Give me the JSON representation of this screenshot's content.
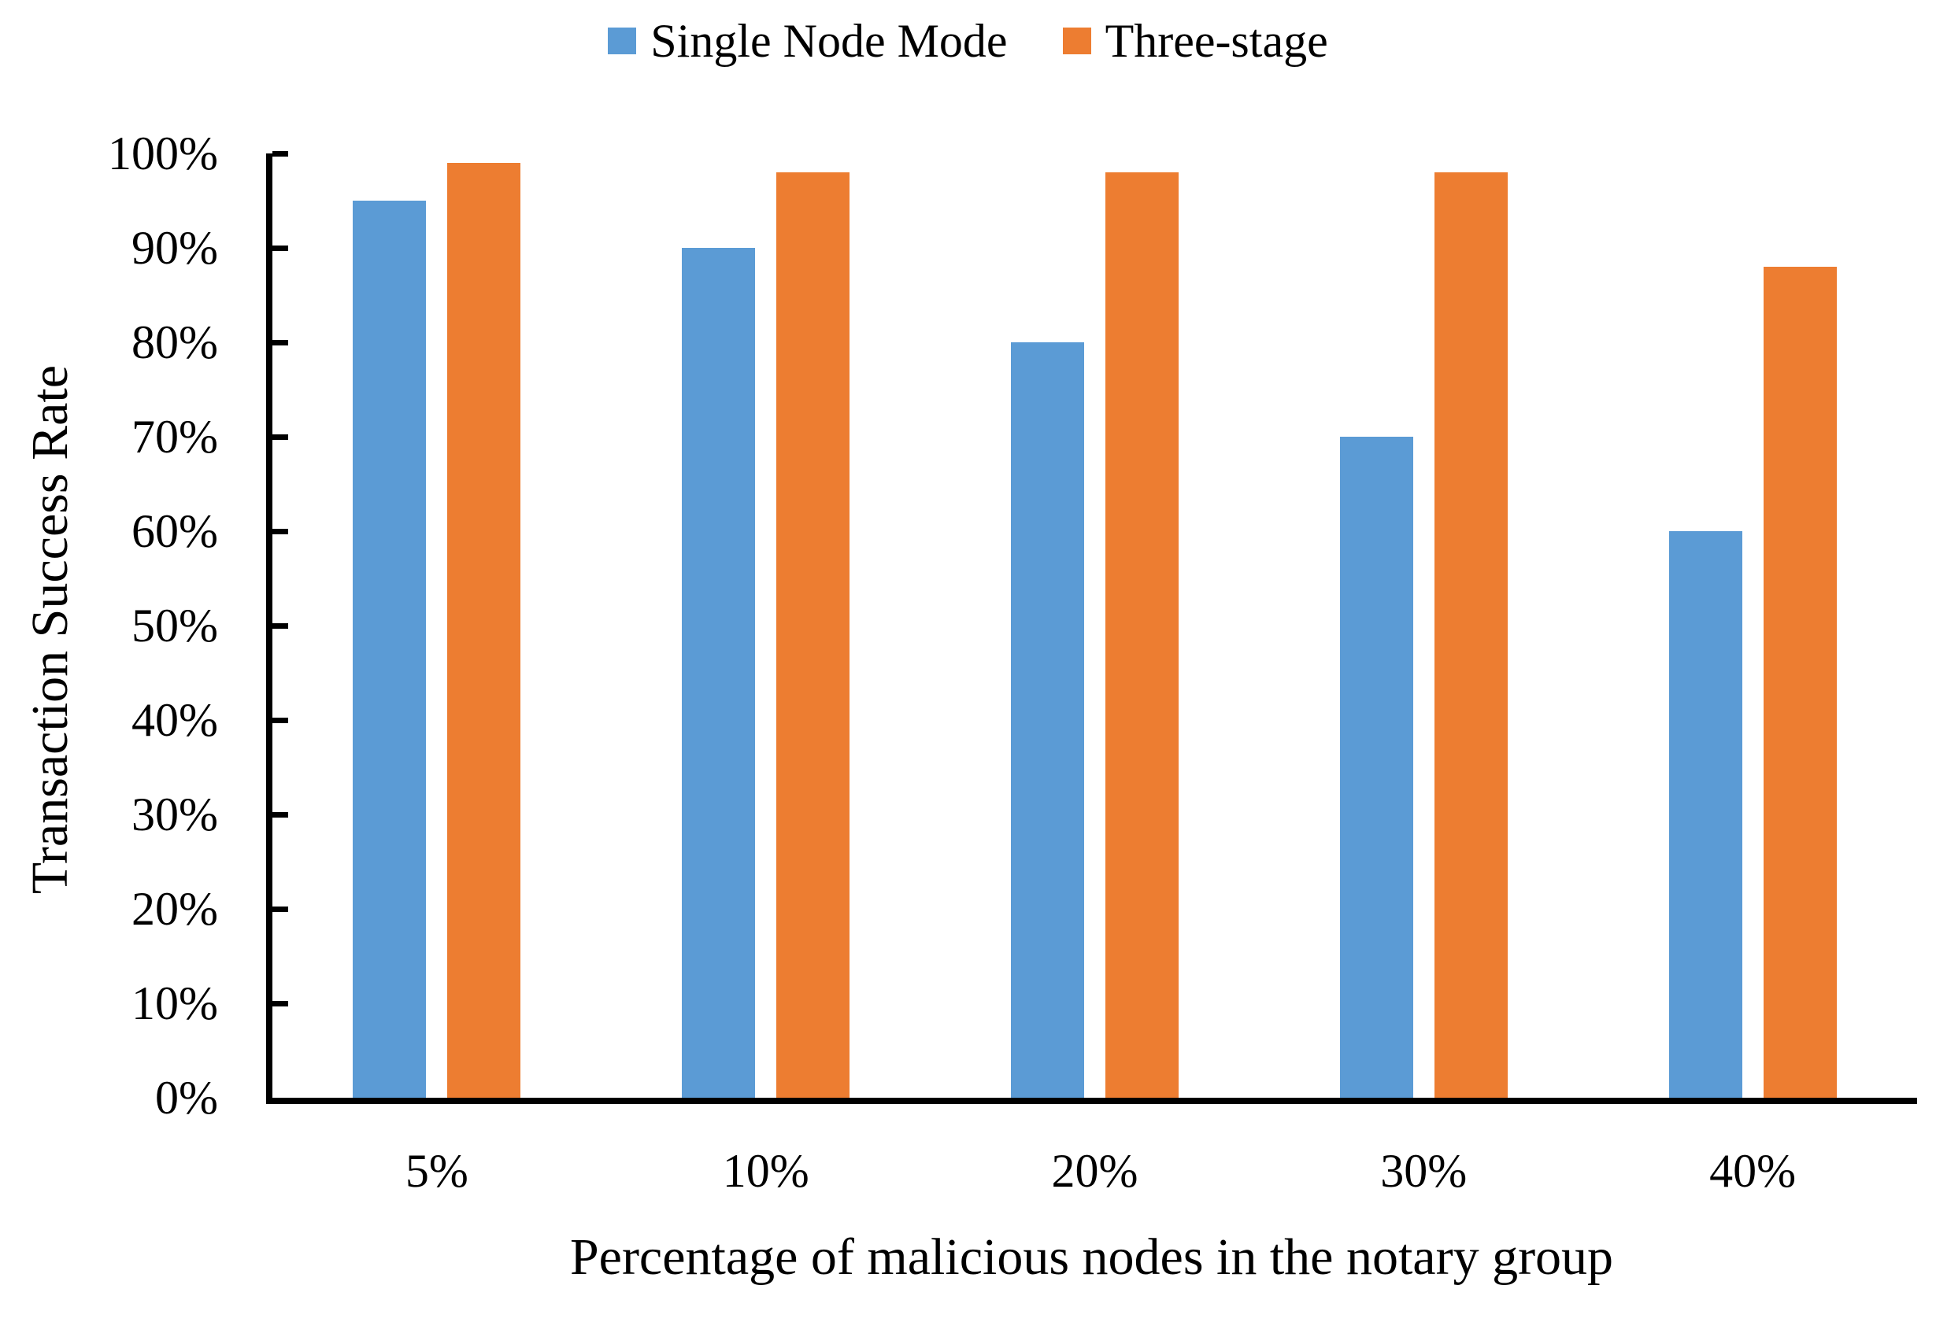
{
  "chart_data": {
    "type": "bar",
    "title": "",
    "categories": [
      "5%",
      "10%",
      "20%",
      "30%",
      "40%"
    ],
    "series": [
      {
        "name": "Single Node Mode",
        "color": "#5B9BD5",
        "values": [
          95,
          90,
          80,
          70,
          60
        ]
      },
      {
        "name": "Three-stage",
        "color": "#ED7D31",
        "values": [
          99,
          98,
          98,
          98,
          88
        ]
      }
    ],
    "xlabel": "Percentage of malicious nodes in the notary group",
    "ylabel": "Transaction Success Rate",
    "ylim": [
      0,
      100
    ],
    "ytick_step": 10,
    "ytick_labels": [
      "0%",
      "10%",
      "20%",
      "30%",
      "40%",
      "50%",
      "60%",
      "70%",
      "80%",
      "90%",
      "100%"
    ],
    "grid": false,
    "legend_position": "top-center",
    "axis_color": "#000000",
    "tick_direction": "inside"
  }
}
